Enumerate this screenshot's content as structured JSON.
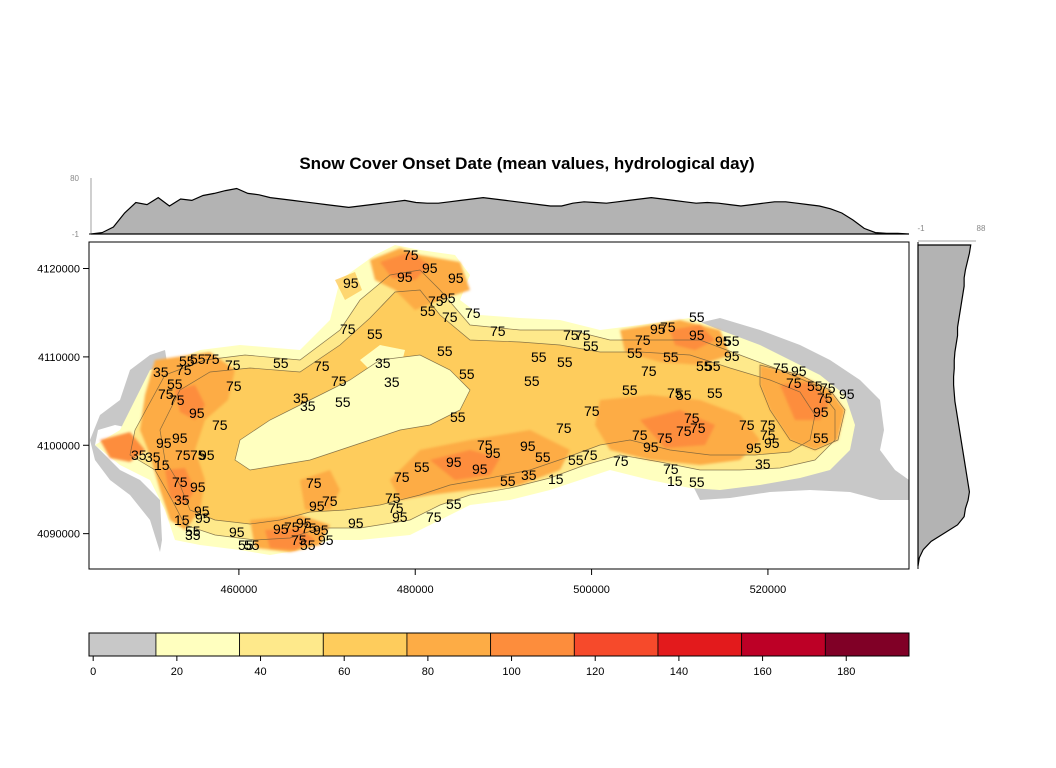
{
  "chart_data": {
    "type": "heatmap",
    "title": "Snow Cover Onset Date (mean values, hydrological day)",
    "xlabel": "",
    "ylabel": "",
    "x_ticks": [
      460000,
      480000,
      500000,
      520000
    ],
    "y_ticks": [
      4090000,
      4100000,
      4110000,
      4120000
    ],
    "xlim": [
      443000,
      536000
    ],
    "ylim": [
      4086000,
      4123000
    ],
    "colorbar": {
      "ticks": [
        0,
        20,
        40,
        60,
        80,
        100,
        120,
        140,
        160,
        180
      ],
      "range": [
        -1,
        195
      ],
      "breaks": [
        -1,
        15,
        35,
        55,
        75,
        95,
        115,
        135,
        155,
        175,
        195
      ],
      "colors": [
        "#c8c8c8",
        "#ffffbf",
        "#fee98b",
        "#fecc5c",
        "#fdac45",
        "#fd8d3c",
        "#f64a2b",
        "#e31a1c",
        "#bd0026",
        "#800026"
      ]
    },
    "top_marginal": {
      "ymin_label": "-1",
      "ymax_label": "80",
      "fill": "#b3b3b3",
      "values": [
        0,
        2,
        10,
        30,
        45,
        42,
        52,
        40,
        50,
        48,
        55,
        58,
        62,
        65,
        58,
        56,
        52,
        50,
        48,
        46,
        44,
        42,
        40,
        38,
        40,
        42,
        44,
        46,
        48,
        45,
        44,
        44,
        46,
        48,
        50,
        52,
        50,
        48,
        46,
        44,
        42,
        40,
        40,
        44,
        46,
        45,
        44,
        46,
        48,
        50,
        52,
        50,
        48,
        46,
        44,
        45,
        44,
        42,
        40,
        42,
        44,
        46,
        46,
        44,
        42,
        40,
        36,
        30,
        20,
        8,
        2,
        1,
        1,
        0
      ]
    },
    "right_marginal": {
      "ymin_label": "-1",
      "ymax_label": "88",
      "fill": "#b3b3b3",
      "values": [
        80,
        78,
        75,
        72,
        70,
        70,
        68,
        66,
        64,
        62,
        60,
        60,
        58,
        56,
        55,
        55,
        54,
        54,
        55,
        56,
        58,
        60,
        62,
        64,
        66,
        68,
        70,
        72,
        74,
        76,
        78,
        76,
        72,
        70,
        60,
        40,
        20,
        8,
        2,
        0
      ]
    },
    "contour_labels": [
      "15",
      "35",
      "55",
      "75",
      "95"
    ]
  }
}
